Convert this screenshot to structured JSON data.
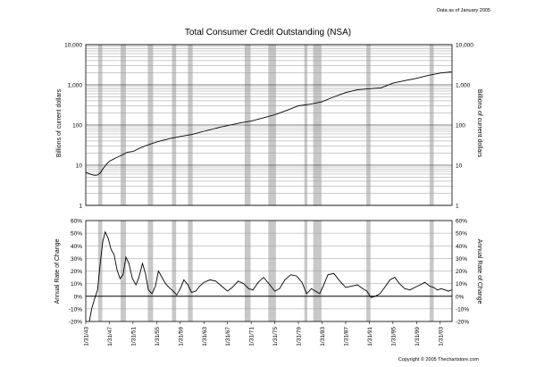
{
  "header_note": "Data as of January 2005",
  "copyright": "Copyright © 2005 Thechartstore.com",
  "colors": {
    "recession": "#c8c8c8",
    "line": "#000000",
    "grid": "#9a9a9a",
    "background": "#ffffff"
  },
  "chart_data": [
    {
      "type": "line",
      "title": "Total Consumer Credit Outstanding (NSA)",
      "ylabel": "Billions of current dollars",
      "ylabel_right": "Billions of current dollars",
      "yscale": "log",
      "ylim": [
        1,
        10000
      ],
      "yticks": [
        "1",
        "10",
        "100",
        "1,000",
        "10,000"
      ],
      "xlim": [
        1943,
        2005
      ],
      "grid": true,
      "recession_shading_years": [
        [
          1945.1,
          1945.8
        ],
        [
          1948.9,
          1949.8
        ],
        [
          1953.5,
          1954.4
        ],
        [
          1957.6,
          1958.3
        ],
        [
          1960.3,
          1961.1
        ],
        [
          1969.9,
          1970.9
        ],
        [
          1973.9,
          1975.2
        ],
        [
          1980.0,
          1980.5
        ],
        [
          1981.5,
          1982.9
        ],
        [
          1990.5,
          1991.2
        ],
        [
          2001.2,
          2001.9
        ]
      ],
      "series": [
        {
          "x": [
            1943.0,
            1943.5,
            1944.0,
            1944.5,
            1945.0,
            1945.5,
            1946.0,
            1946.5,
            1947.0,
            1948.0,
            1949.0,
            1950.0,
            1951.0,
            1952.0,
            1953.0,
            1955.0,
            1957.0,
            1959.0,
            1961.0,
            1963.0,
            1966.0,
            1969.0,
            1971.0,
            1973.0,
            1975.0,
            1977.0,
            1979.0,
            1981.0,
            1983.0,
            1985.0,
            1987.0,
            1989.0,
            1991.0,
            1993.0,
            1995.0,
            1997.0,
            1999.0,
            2001.0,
            2003.0,
            2004.9
          ],
          "values": [
            6.6,
            6.2,
            5.8,
            5.6,
            5.7,
            6.5,
            8.5,
            10.5,
            12.5,
            15.0,
            17.5,
            21.0,
            22.0,
            26.0,
            30.0,
            38.0,
            45.0,
            52.0,
            58.0,
            70.0,
            90.0,
            112.0,
            125.0,
            150.0,
            180.0,
            230.0,
            300.0,
            330.0,
            380.0,
            500.0,
            640.0,
            760.0,
            800.0,
            840.0,
            1100.0,
            1270.0,
            1450.0,
            1720.0,
            1960.0,
            2100.0
          ]
        }
      ]
    },
    {
      "type": "line",
      "ylabel": "Annual Rate of Change",
      "ylabel_right": "Annual Rate of Change",
      "ylim": [
        -20,
        60
      ],
      "yticks": [
        "-20%",
        "-10%",
        "0%",
        "10%",
        "20%",
        "30%",
        "40%",
        "50%",
        "60%"
      ],
      "xlim": [
        1943,
        2005
      ],
      "xticks": [
        "1/31/43",
        "1/31/47",
        "1/31/51",
        "1/31/55",
        "1/31/59",
        "1/31/63",
        "1/31/67",
        "1/31/71",
        "1/31/75",
        "1/31/79",
        "1/31/83",
        "1/31/87",
        "1/31/91",
        "1/31/95",
        "1/31/99",
        "1/31/03"
      ],
      "grid": true,
      "series": [
        {
          "x": [
            1943.6,
            1944.0,
            1944.5,
            1945.0,
            1945.5,
            1945.9,
            1946.3,
            1946.8,
            1947.3,
            1947.8,
            1948.3,
            1948.8,
            1949.3,
            1949.8,
            1950.3,
            1950.9,
            1951.5,
            1952.0,
            1952.6,
            1953.1,
            1953.6,
            1954.2,
            1954.8,
            1955.3,
            1955.9,
            1956.5,
            1957.1,
            1957.8,
            1958.4,
            1959.0,
            1959.6,
            1960.3,
            1960.9,
            1961.6,
            1962.3,
            1963.0,
            1964.0,
            1965.0,
            1966.0,
            1967.0,
            1967.8,
            1968.8,
            1969.7,
            1970.6,
            1971.3,
            1972.2,
            1973.1,
            1974.0,
            1975.0,
            1975.8,
            1976.7,
            1977.7,
            1978.7,
            1979.6,
            1980.4,
            1981.2,
            1981.9,
            1982.6,
            1983.2,
            1984.0,
            1985.0,
            1986.0,
            1987.0,
            1988.0,
            1989.0,
            1989.9,
            1990.6,
            1991.3,
            1992.0,
            1992.8,
            1993.6,
            1994.5,
            1995.3,
            1996.1,
            1997.0,
            1997.9,
            1998.7,
            1999.6,
            2000.4,
            2001.2,
            2001.9,
            2002.5,
            2003.2,
            2003.8,
            2004.4,
            2004.9
          ],
          "values": [
            -21.0,
            -10.0,
            -2.0,
            5.0,
            28.0,
            44.0,
            51.0,
            46.0,
            37.0,
            33.0,
            21.0,
            14.0,
            17.0,
            31.0,
            26.0,
            14.0,
            9.0,
            15.0,
            26.0,
            18.0,
            5.0,
            2.0,
            8.0,
            20.0,
            15.0,
            10.0,
            7.0,
            4.0,
            1.0,
            6.0,
            13.0,
            9.0,
            3.0,
            4.0,
            8.0,
            11.0,
            13.0,
            12.0,
            8.0,
            4.0,
            7.0,
            12.0,
            10.0,
            6.0,
            5.0,
            11.0,
            15.0,
            10.0,
            4.0,
            6.0,
            13.0,
            17.0,
            16.0,
            11.0,
            2.0,
            6.0,
            4.0,
            2.0,
            8.0,
            17.0,
            18.0,
            12.0,
            7.0,
            8.0,
            9.0,
            6.0,
            4.0,
            -1.0,
            0.0,
            2.0,
            7.0,
            13.0,
            15.0,
            10.0,
            6.0,
            5.0,
            7.0,
            9.0,
            11.0,
            8.0,
            7.0,
            5.0,
            6.0,
            5.0,
            4.0,
            5.0
          ]
        }
      ]
    }
  ]
}
